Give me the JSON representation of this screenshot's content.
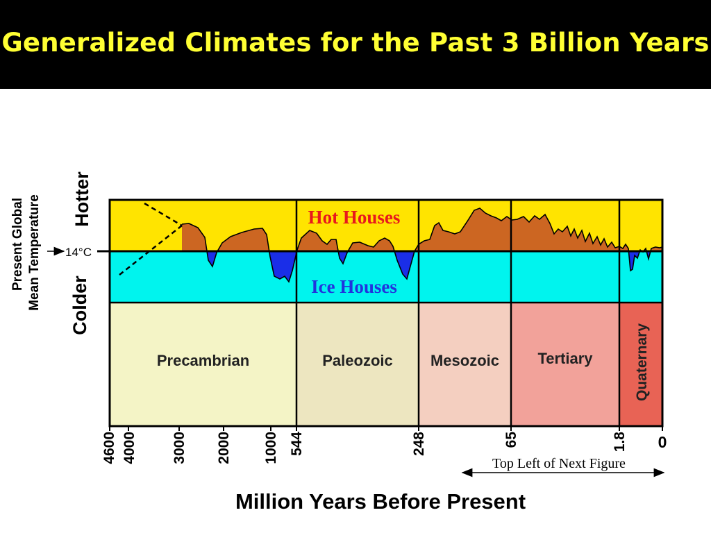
{
  "title": "Generalized Climates for the Past 3 Billion Years",
  "chart_data": {
    "type": "area",
    "xlabel": "Million Years Before Present",
    "ylabel_lines": [
      "Present Global",
      "Mean Temperature"
    ],
    "hotter_label": "Hotter",
    "colder_label": "Colder",
    "reference_label": "14°C",
    "hot_zone_label": "Hot Houses",
    "cold_zone_label": "Ice Houses",
    "x_ticks": [
      {
        "value": 4600,
        "label": "4600"
      },
      {
        "value": 4000,
        "label": "4000"
      },
      {
        "value": 3000,
        "label": "3000"
      },
      {
        "value": 2000,
        "label": "2000"
      },
      {
        "value": 1000,
        "label": "1000"
      },
      {
        "value": 544,
        "label": "544"
      },
      {
        "value": 248,
        "label": "248"
      },
      {
        "value": 65,
        "label": "65"
      },
      {
        "value": 1.8,
        "label": "1.8"
      },
      {
        "value": 0,
        "label": "0"
      }
    ],
    "eras": [
      {
        "name": "Precambrian",
        "start": 4600,
        "end": 544,
        "color": "#f4f4c6"
      },
      {
        "name": "Paleozoic",
        "start": 544,
        "end": 248,
        "color": "#ede6c0"
      },
      {
        "name": "Mesozoic",
        "start": 248,
        "end": 65,
        "color": "#f4cfc0"
      },
      {
        "name": "Tertiary",
        "start": 65,
        "end": 1.8,
        "color": "#f2a29a"
      },
      {
        "name": "Quaternary",
        "start": 1.8,
        "end": 0,
        "color": "#e86355"
      }
    ],
    "annotation": "Top Left of Next Figure",
    "colors": {
      "hot_zone": "#ffe400",
      "cold_zone": "#00f4ee",
      "warm_fill": "#cc6622",
      "cold_fill": "#1a2ee8",
      "hot_label": "#e8191c",
      "cold_label": "#2233dd"
    }
  }
}
